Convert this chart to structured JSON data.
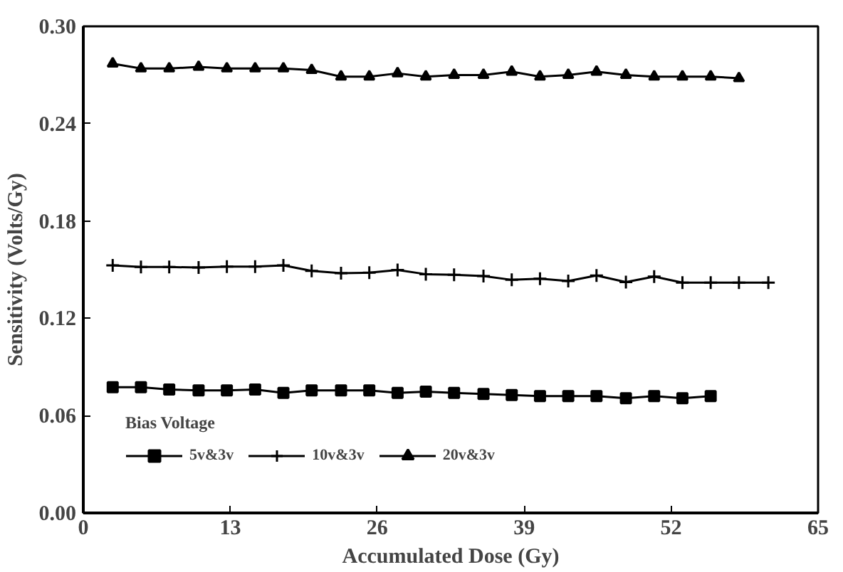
{
  "chart_data": {
    "type": "line",
    "xlabel": "Accumulated Dose (Gy)",
    "ylabel": "Sensitivity (Volts/Gy)",
    "legend_title": "Bias Voltage",
    "xlim": [
      0,
      65
    ],
    "xticks": [
      0,
      13,
      26,
      39,
      52,
      65
    ],
    "ylim": [
      0,
      0.3
    ],
    "yticks": [
      {
        "value": 0,
        "label": "0.00"
      },
      {
        "value": 0.06,
        "label": "0.06"
      },
      {
        "value": 0.12,
        "label": "0.12"
      },
      {
        "value": 0.18,
        "label": "0.18"
      },
      {
        "value": 0.24,
        "label": "0.24"
      },
      {
        "value": 0.3,
        "label": "0.30"
      }
    ],
    "grid": false,
    "legend": "bottom left",
    "line_style": "solid",
    "series": [
      {
        "name": "5v&3v",
        "color": "#000000",
        "marker": "square",
        "x": [
          2.6,
          5.1,
          7.6,
          10.2,
          12.7,
          15.2,
          17.7,
          20.2,
          22.8,
          25.3,
          27.8,
          30.3,
          32.8,
          35.4,
          37.9,
          40.4,
          42.9,
          45.4,
          48,
          50.5,
          53,
          55.5
        ],
        "values": [
          0.0775,
          0.0775,
          0.0761,
          0.0755,
          0.0755,
          0.0761,
          0.074,
          0.0755,
          0.0755,
          0.0755,
          0.074,
          0.0748,
          0.074,
          0.0734,
          0.0727,
          0.072,
          0.072,
          0.072,
          0.0707,
          0.072,
          0.0707,
          0.072
        ]
      },
      {
        "name": "10v&3v",
        "color": "#000000",
        "marker": "cross",
        "x": [
          2.6,
          5.1,
          7.6,
          10.2,
          12.7,
          15.2,
          17.7,
          20.2,
          22.8,
          25.3,
          27.8,
          30.3,
          32.8,
          35.4,
          37.9,
          40.4,
          42.9,
          45.4,
          48,
          50.5,
          53,
          55.5,
          58,
          60.6
        ],
        "values": [
          0.1526,
          0.1516,
          0.1516,
          0.1513,
          0.1519,
          0.1519,
          0.1526,
          0.1492,
          0.1478,
          0.1481,
          0.1498,
          0.1472,
          0.1468,
          0.1461,
          0.1437,
          0.1444,
          0.143,
          0.1464,
          0.1423,
          0.1457,
          0.142,
          0.142,
          0.142,
          0.142
        ]
      },
      {
        "name": "20v&3v",
        "color": "#000000",
        "marker": "triangle",
        "x": [
          2.6,
          5.1,
          7.6,
          10.2,
          12.7,
          15.2,
          17.7,
          20.2,
          22.8,
          25.3,
          27.8,
          30.3,
          32.8,
          35.4,
          37.9,
          40.4,
          42.9,
          45.4,
          48,
          50.5,
          53,
          55.5,
          58
        ],
        "values": [
          0.277,
          0.274,
          0.274,
          0.275,
          0.274,
          0.274,
          0.274,
          0.273,
          0.269,
          0.269,
          0.271,
          0.269,
          0.27,
          0.27,
          0.272,
          0.269,
          0.27,
          0.272,
          0.27,
          0.269,
          0.269,
          0.269,
          0.268
        ]
      }
    ]
  }
}
